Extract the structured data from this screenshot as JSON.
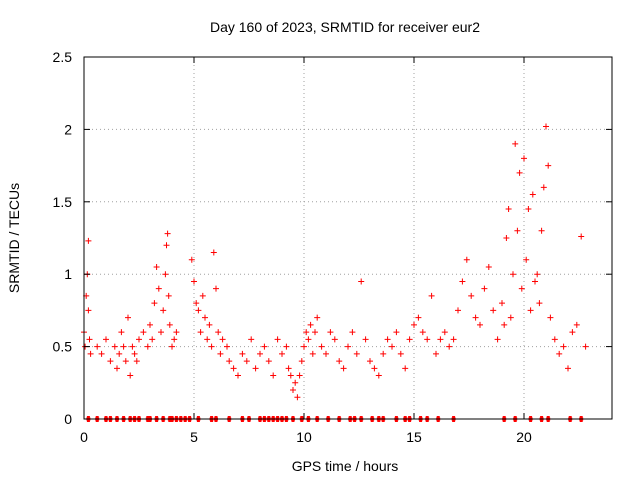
{
  "chart_data": {
    "type": "scatter",
    "title": "Day 160 of 2023, SRMTID for receiver eur2",
    "xlabel": "GPS time / hours",
    "ylabel": "SRMTID / TECUs",
    "xlim": [
      0,
      24
    ],
    "ylim": [
      0,
      2.5
    ],
    "x_ticks": [
      0,
      5,
      10,
      15,
      20
    ],
    "x_tick_labels": [
      "0",
      "5",
      "10",
      "15",
      "20"
    ],
    "y_ticks": [
      0,
      0.5,
      1,
      1.5,
      2,
      2.5
    ],
    "y_tick_labels": [
      "0",
      "0.5",
      "1",
      "1.5",
      "2",
      "2.5"
    ],
    "grid": true,
    "marker": "+",
    "series": [
      {
        "name": "SRMTID",
        "color": "#ff0000",
        "x": [
          0.0,
          0.05,
          0.1,
          0.15,
          0.2,
          0.2,
          0.25,
          0.3,
          0.6,
          0.8,
          1.0,
          1.2,
          1.4,
          1.5,
          1.6,
          1.7,
          1.8,
          1.9,
          2.0,
          2.1,
          2.2,
          2.3,
          2.4,
          2.5,
          2.7,
          2.9,
          3.0,
          3.1,
          3.2,
          3.3,
          3.4,
          3.5,
          3.6,
          3.7,
          3.75,
          3.8,
          3.85,
          3.9,
          4.0,
          4.1,
          4.2,
          4.9,
          5.0,
          5.1,
          5.2,
          5.3,
          5.4,
          5.5,
          5.6,
          5.7,
          5.8,
          5.9,
          6.0,
          6.1,
          6.2,
          6.3,
          6.5,
          6.6,
          6.8,
          7.0,
          7.2,
          7.4,
          7.6,
          7.8,
          8.0,
          8.2,
          8.4,
          8.6,
          8.8,
          9.0,
          9.2,
          9.3,
          9.4,
          9.5,
          9.6,
          9.7,
          9.8,
          9.9,
          10.0,
          10.1,
          10.2,
          10.3,
          10.4,
          10.5,
          10.6,
          10.8,
          11.0,
          11.2,
          11.4,
          11.6,
          11.8,
          12.0,
          12.2,
          12.4,
          12.6,
          12.8,
          13.0,
          13.2,
          13.4,
          13.6,
          13.8,
          14.0,
          14.2,
          14.4,
          14.6,
          14.8,
          15.0,
          15.2,
          15.4,
          15.6,
          15.8,
          16.0,
          16.2,
          16.4,
          16.6,
          16.8,
          17.0,
          17.2,
          17.4,
          17.6,
          17.8,
          18.0,
          18.2,
          18.4,
          18.6,
          18.8,
          19.0,
          19.1,
          19.2,
          19.3,
          19.4,
          19.5,
          19.6,
          19.7,
          19.8,
          19.9,
          20.0,
          20.1,
          20.2,
          20.3,
          20.4,
          20.5,
          20.6,
          20.7,
          20.8,
          20.9,
          21.0,
          21.1,
          21.2,
          21.4,
          21.6,
          21.8,
          22.0,
          22.2,
          22.4,
          22.6,
          22.8
        ],
        "y": [
          0.6,
          0.5,
          0.85,
          1.0,
          1.23,
          0.75,
          0.55,
          0.45,
          0.5,
          0.45,
          0.55,
          0.4,
          0.5,
          0.35,
          0.45,
          0.6,
          0.5,
          0.4,
          0.7,
          0.3,
          0.5,
          0.45,
          0.4,
          0.55,
          0.6,
          0.5,
          0.65,
          0.55,
          0.8,
          1.05,
          0.9,
          0.6,
          0.75,
          1.0,
          1.2,
          1.28,
          0.85,
          0.65,
          0.5,
          0.55,
          0.6,
          1.1,
          0.95,
          0.8,
          0.75,
          0.6,
          0.85,
          0.7,
          0.55,
          0.65,
          0.5,
          1.15,
          0.9,
          0.6,
          0.45,
          0.55,
          0.5,
          0.4,
          0.35,
          0.3,
          0.45,
          0.4,
          0.55,
          0.35,
          0.45,
          0.5,
          0.4,
          0.3,
          0.55,
          0.45,
          0.5,
          0.35,
          0.3,
          0.2,
          0.25,
          0.15,
          0.3,
          0.4,
          0.5,
          0.6,
          0.55,
          0.65,
          0.45,
          0.6,
          0.7,
          0.5,
          0.45,
          0.6,
          0.55,
          0.4,
          0.35,
          0.5,
          0.6,
          0.45,
          0.95,
          0.55,
          0.4,
          0.35,
          0.3,
          0.45,
          0.55,
          0.5,
          0.6,
          0.45,
          0.35,
          0.55,
          0.65,
          0.7,
          0.6,
          0.55,
          0.85,
          0.45,
          0.55,
          0.6,
          0.5,
          0.55,
          0.75,
          0.95,
          1.1,
          0.85,
          0.7,
          0.65,
          0.9,
          1.05,
          0.75,
          0.55,
          0.8,
          0.65,
          1.25,
          1.45,
          0.7,
          1.0,
          1.9,
          1.3,
          1.7,
          0.9,
          1.8,
          1.1,
          1.45,
          0.75,
          1.55,
          0.95,
          1.0,
          0.8,
          1.3,
          1.6,
          2.02,
          1.75,
          0.7,
          0.55,
          0.45,
          0.5,
          0.35,
          0.6,
          0.65,
          1.26,
          0.5
        ]
      }
    ],
    "zero_markers_x": [
      0.2,
      0.6,
      1.0,
      1.2,
      1.5,
      1.8,
      2.1,
      2.3,
      2.5,
      2.9,
      3.0,
      3.3,
      3.6,
      3.9,
      4.0,
      4.2,
      4.4,
      4.6,
      4.8,
      5.2,
      5.8,
      6.0,
      6.6,
      7.2,
      7.5,
      8.0,
      8.2,
      8.4,
      8.6,
      8.8,
      9.0,
      9.2,
      9.5,
      9.9,
      10.2,
      10.6,
      11.1,
      11.6,
      12.1,
      12.3,
      12.6,
      13.1,
      13.4,
      13.6,
      14.2,
      14.6,
      14.8,
      15.3,
      15.6,
      16.1,
      16.8,
      19.1,
      19.6,
      20.3,
      20.8,
      21.1,
      22.1,
      22.6
    ]
  }
}
